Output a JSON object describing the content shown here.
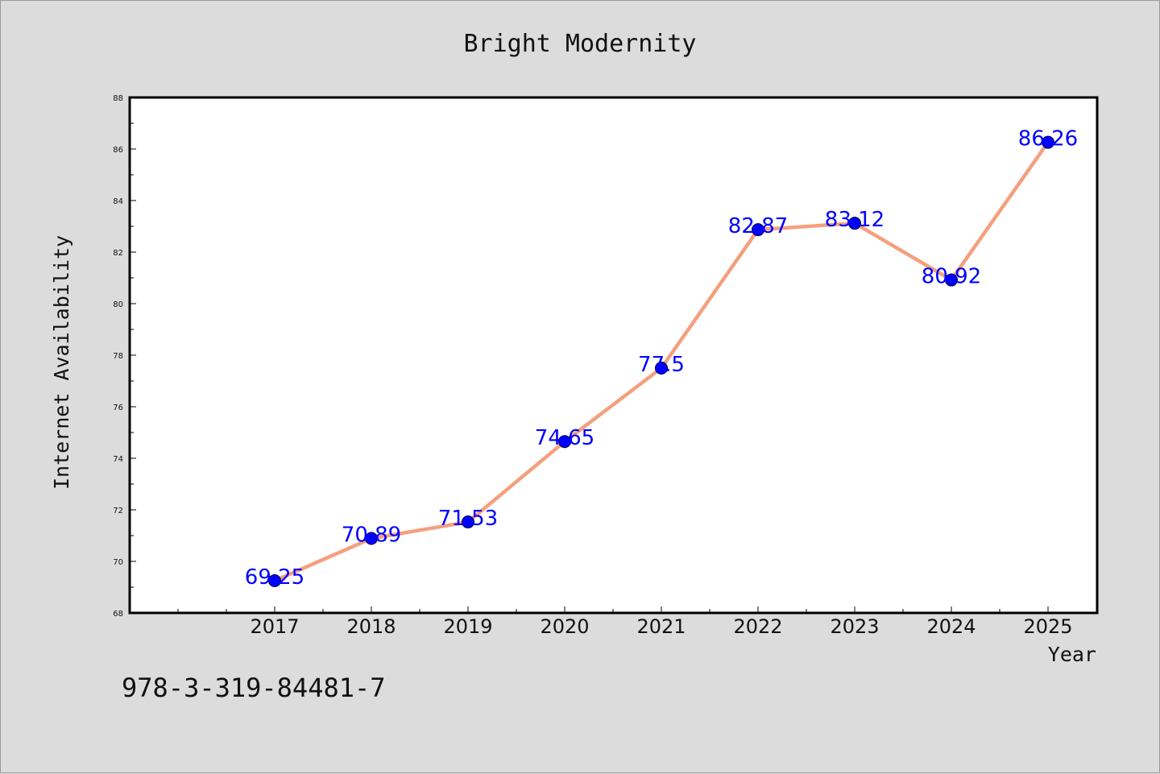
{
  "isbn": "978-3-319-84481-7",
  "colors": {
    "background": "#dcdcdc",
    "plot_background": "#ffffff",
    "line": "#f4a07e",
    "marker": "#0000ff",
    "data_label": "#0000ff",
    "frame": "#000000"
  },
  "chart_data": {
    "type": "line",
    "title": "Bright Modernity",
    "xlabel": "Year",
    "ylabel": "Internet Availability",
    "categories": [
      "2017",
      "2018",
      "2019",
      "2020",
      "2021",
      "2022",
      "2023",
      "2024",
      "2025"
    ],
    "series": [
      {
        "values": [
          69.25,
          70.89,
          71.53,
          74.65,
          77.5,
          82.87,
          83.12,
          80.92,
          86.26
        ],
        "labels": [
          "69.25",
          "70.89",
          "71.53",
          "74.65",
          "77.5",
          "82.87",
          "83.12",
          "80.92",
          "86.26"
        ]
      }
    ],
    "ylim": [
      68,
      88
    ],
    "yticks": [
      "68",
      "70",
      "72",
      "74",
      "76",
      "78",
      "80",
      "82",
      "84",
      "86",
      "88"
    ],
    "grid": false,
    "legend": "none",
    "marker": "circle"
  }
}
